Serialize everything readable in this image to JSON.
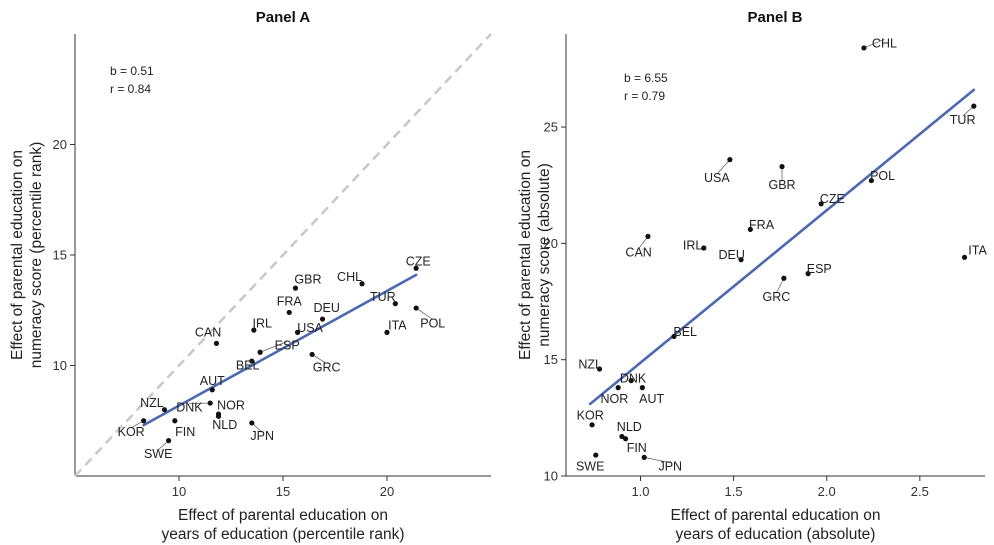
{
  "chart_data": [
    {
      "type": "scatter",
      "title": "Panel A",
      "xlabel": [
        "Effect of parental education on",
        "years of education (percentile rank)"
      ],
      "ylabel": [
        "Effect of parental education on",
        "numeracy score (percentile rank)"
      ],
      "xlim": [
        5,
        25
      ],
      "ylim": [
        5,
        25
      ],
      "xticks": [
        10,
        15,
        20
      ],
      "yticks": [
        10,
        15,
        20
      ],
      "stats": [
        "b = 0.51",
        "r = 0.84"
      ],
      "diagonal": true,
      "fit": [
        [
          8.3,
          7.3
        ],
        [
          21.4,
          14.1
        ]
      ],
      "points": [
        {
          "label": "CZE",
          "x": 21.4,
          "y": 14.4,
          "lx": 21.5,
          "ly": 14.7
        },
        {
          "label": "CHL",
          "x": 18.8,
          "y": 13.7,
          "lx": 18.2,
          "ly": 14.0
        },
        {
          "label": "GBR",
          "x": 15.6,
          "y": 13.5,
          "lx": 16.2,
          "ly": 13.9
        },
        {
          "label": "TUR",
          "x": 20.4,
          "y": 12.8,
          "lx": 19.8,
          "ly": 13.1
        },
        {
          "label": "POL",
          "x": 21.4,
          "y": 12.6,
          "lx": 22.2,
          "ly": 11.9
        },
        {
          "label": "FRA",
          "x": 15.3,
          "y": 12.4,
          "lx": 15.3,
          "ly": 12.9
        },
        {
          "label": "DEU",
          "x": 16.9,
          "y": 12.1,
          "lx": 17.1,
          "ly": 12.6
        },
        {
          "label": "IRL",
          "x": 13.6,
          "y": 11.6,
          "lx": 14.0,
          "ly": 11.9
        },
        {
          "label": "USA",
          "x": 15.7,
          "y": 11.5,
          "lx": 16.3,
          "ly": 11.7
        },
        {
          "label": "ITA",
          "x": 20.0,
          "y": 11.5,
          "lx": 20.5,
          "ly": 11.8
        },
        {
          "label": "CAN",
          "x": 11.8,
          "y": 11.0,
          "lx": 11.4,
          "ly": 11.5
        },
        {
          "label": "ESP",
          "x": 13.9,
          "y": 10.6,
          "lx": 15.2,
          "ly": 10.9
        },
        {
          "label": "GRC",
          "x": 16.4,
          "y": 10.5,
          "lx": 17.1,
          "ly": 9.9
        },
        {
          "label": "BEL",
          "x": 13.5,
          "y": 10.2,
          "lx": 13.3,
          "ly": 10.0
        },
        {
          "label": "AUT",
          "x": 11.6,
          "y": 8.9,
          "lx": 11.6,
          "ly": 9.3
        },
        {
          "label": "NZL",
          "x": 9.3,
          "y": 8.0,
          "lx": 8.7,
          "ly": 8.3
        },
        {
          "label": "DNK",
          "x": 11.5,
          "y": 8.3,
          "lx": 10.5,
          "ly": 8.1
        },
        {
          "label": "NOR",
          "x": 11.9,
          "y": 7.8,
          "lx": 12.5,
          "ly": 8.2
        },
        {
          "label": "NLD",
          "x": 11.9,
          "y": 7.7,
          "lx": 12.2,
          "ly": 7.3
        },
        {
          "label": "KOR",
          "x": 8.3,
          "y": 7.5,
          "lx": 7.7,
          "ly": 7.0
        },
        {
          "label": "FIN",
          "x": 9.8,
          "y": 7.5,
          "lx": 10.3,
          "ly": 7.0
        },
        {
          "label": "JPN",
          "x": 13.5,
          "y": 7.4,
          "lx": 14.0,
          "ly": 6.8
        },
        {
          "label": "SWE",
          "x": 9.5,
          "y": 6.6,
          "lx": 9.0,
          "ly": 6.0
        }
      ]
    },
    {
      "type": "scatter",
      "title": "Panel B",
      "xlabel": [
        "Effect of parental education on",
        "years of education (absolute)"
      ],
      "ylabel": [
        "Effect of parental education on",
        "numeracy score (absolute)"
      ],
      "xlim": [
        0.6,
        2.85
      ],
      "ylim": [
        10,
        29
      ],
      "xticks": [
        1.0,
        1.5,
        2.0,
        2.5
      ],
      "xtick_labels": [
        "1.0",
        "1.5",
        "2.0",
        "2.5"
      ],
      "yticks": [
        10,
        15,
        20,
        25
      ],
      "stats": [
        "b = 6.55",
        "r = 0.79"
      ],
      "diagonal": false,
      "fit": [
        [
          0.73,
          13.1
        ],
        [
          2.79,
          26.6
        ]
      ],
      "points": [
        {
          "label": "CHL",
          "x": 2.2,
          "y": 28.4,
          "lx": 2.31,
          "ly": 28.6
        },
        {
          "label": "TUR",
          "x": 2.79,
          "y": 25.9,
          "lx": 2.73,
          "ly": 25.3
        },
        {
          "label": "USA",
          "x": 1.48,
          "y": 23.6,
          "lx": 1.41,
          "ly": 22.8
        },
        {
          "label": "GBR",
          "x": 1.76,
          "y": 23.3,
          "lx": 1.76,
          "ly": 22.5
        },
        {
          "label": "POL",
          "x": 2.24,
          "y": 22.7,
          "lx": 2.3,
          "ly": 22.9
        },
        {
          "label": "CZE",
          "x": 1.97,
          "y": 21.7,
          "lx": 2.03,
          "ly": 21.9
        },
        {
          "label": "FRA",
          "x": 1.59,
          "y": 20.6,
          "lx": 1.65,
          "ly": 20.8
        },
        {
          "label": "CAN",
          "x": 1.04,
          "y": 20.3,
          "lx": 0.99,
          "ly": 19.6
        },
        {
          "label": "IRL",
          "x": 1.34,
          "y": 19.8,
          "lx": 1.28,
          "ly": 19.9
        },
        {
          "label": "DEU",
          "x": 1.54,
          "y": 19.3,
          "lx": 1.49,
          "ly": 19.5
        },
        {
          "label": "ITA",
          "x": 2.74,
          "y": 19.4,
          "lx": 2.81,
          "ly": 19.7
        },
        {
          "label": "ESP",
          "x": 1.9,
          "y": 18.7,
          "lx": 1.96,
          "ly": 18.9
        },
        {
          "label": "GRC",
          "x": 1.77,
          "y": 18.5,
          "lx": 1.73,
          "ly": 17.7
        },
        {
          "label": "BEL",
          "x": 1.18,
          "y": 16.0,
          "lx": 1.24,
          "ly": 16.2
        },
        {
          "label": "NZL",
          "x": 0.78,
          "y": 14.6,
          "lx": 0.73,
          "ly": 14.8
        },
        {
          "label": "DNK",
          "x": 0.95,
          "y": 14.1,
          "lx": 0.96,
          "ly": 14.2
        },
        {
          "label": "AUT",
          "x": 1.01,
          "y": 13.8,
          "lx": 1.06,
          "ly": 13.3
        },
        {
          "label": "NOR",
          "x": 0.88,
          "y": 13.8,
          "lx": 0.86,
          "ly": 13.3
        },
        {
          "label": "KOR",
          "x": 0.74,
          "y": 12.2,
          "lx": 0.73,
          "ly": 12.6
        },
        {
          "label": "NLD",
          "x": 0.9,
          "y": 11.7,
          "lx": 0.94,
          "ly": 12.1
        },
        {
          "label": "FIN",
          "x": 0.92,
          "y": 11.6,
          "lx": 0.98,
          "ly": 11.2
        },
        {
          "label": "SWE",
          "x": 0.76,
          "y": 10.9,
          "lx": 0.73,
          "ly": 10.4
        },
        {
          "label": "JPN",
          "x": 1.02,
          "y": 10.8,
          "lx": 1.16,
          "ly": 10.4
        }
      ]
    }
  ]
}
